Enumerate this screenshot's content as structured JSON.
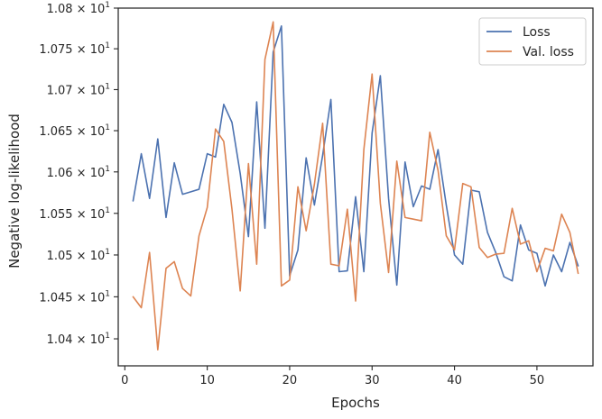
{
  "chart_data": {
    "type": "line",
    "title": "",
    "xlabel": "Epochs",
    "ylabel": "Negative log-likelihood",
    "xlim": [
      -0.8,
      56.8
    ],
    "ylim": [
      10.368,
      10.8
    ],
    "yscale": "log",
    "grid": false,
    "legend_position": "top-right",
    "x_ticks": [
      0,
      10,
      20,
      30,
      40,
      50
    ],
    "x_tick_labels": [
      "0",
      "10",
      "20",
      "30",
      "40",
      "50"
    ],
    "y_ticks": [
      10.4,
      10.45,
      10.5,
      10.55,
      10.6,
      10.65,
      10.7,
      10.75,
      10.8
    ],
    "y_tick_labels": [
      {
        "mantissa": "1.04",
        "base": "10",
        "exp": "1"
      },
      {
        "mantissa": "1.045",
        "base": "10",
        "exp": "1"
      },
      {
        "mantissa": "1.05",
        "base": "10",
        "exp": "1"
      },
      {
        "mantissa": "1.055",
        "base": "10",
        "exp": "1"
      },
      {
        "mantissa": "1.06",
        "base": "10",
        "exp": "1"
      },
      {
        "mantissa": "1.065",
        "base": "10",
        "exp": "1"
      },
      {
        "mantissa": "1.07",
        "base": "10",
        "exp": "1"
      },
      {
        "mantissa": "1.075",
        "base": "10",
        "exp": "1"
      },
      {
        "mantissa": "1.08",
        "base": "10",
        "exp": "1"
      }
    ],
    "x": [
      1,
      2,
      3,
      4,
      5,
      6,
      7,
      8,
      9,
      10,
      11,
      12,
      13,
      14,
      15,
      16,
      17,
      18,
      19,
      20,
      21,
      22,
      23,
      24,
      25,
      26,
      27,
      28,
      29,
      30,
      31,
      32,
      33,
      34,
      35,
      36,
      37,
      38,
      39,
      40,
      41,
      42,
      43,
      44,
      45,
      46,
      47,
      48,
      49,
      50,
      51,
      52,
      53,
      54,
      55
    ],
    "series": [
      {
        "name": "Loss",
        "color": "#4c72b0",
        "values": [
          10.565,
          10.622,
          10.568,
          10.64,
          10.545,
          10.611,
          10.573,
          10.576,
          10.579,
          10.622,
          10.618,
          10.682,
          10.66,
          10.598,
          10.522,
          10.685,
          10.532,
          10.746,
          10.778,
          10.475,
          10.506,
          10.617,
          10.56,
          10.62,
          10.688,
          10.48,
          10.481,
          10.57,
          10.48,
          10.647,
          10.717,
          10.568,
          10.464,
          10.612,
          10.558,
          10.583,
          10.579,
          10.627,
          10.56,
          10.5,
          10.489,
          10.578,
          10.576,
          10.527,
          10.503,
          10.474,
          10.469,
          10.536,
          10.506,
          10.502,
          10.463,
          10.5,
          10.48,
          10.515,
          10.487
        ]
      },
      {
        "name": "Val. loss",
        "color": "#dd8452",
        "values": [
          10.45,
          10.437,
          10.503,
          10.387,
          10.484,
          10.492,
          10.46,
          10.451,
          10.523,
          10.557,
          10.652,
          10.637,
          10.555,
          10.457,
          10.61,
          10.489,
          10.737,
          10.783,
          10.463,
          10.47,
          10.582,
          10.529,
          10.585,
          10.659,
          10.489,
          10.487,
          10.555,
          10.445,
          10.627,
          10.719,
          10.562,
          10.479,
          10.613,
          10.545,
          10.543,
          10.541,
          10.648,
          10.602,
          10.523,
          10.506,
          10.586,
          10.582,
          10.509,
          10.497,
          10.501,
          10.502,
          10.556,
          10.513,
          10.517,
          10.48,
          10.508,
          10.505,
          10.549,
          10.527,
          10.478
        ]
      }
    ]
  }
}
